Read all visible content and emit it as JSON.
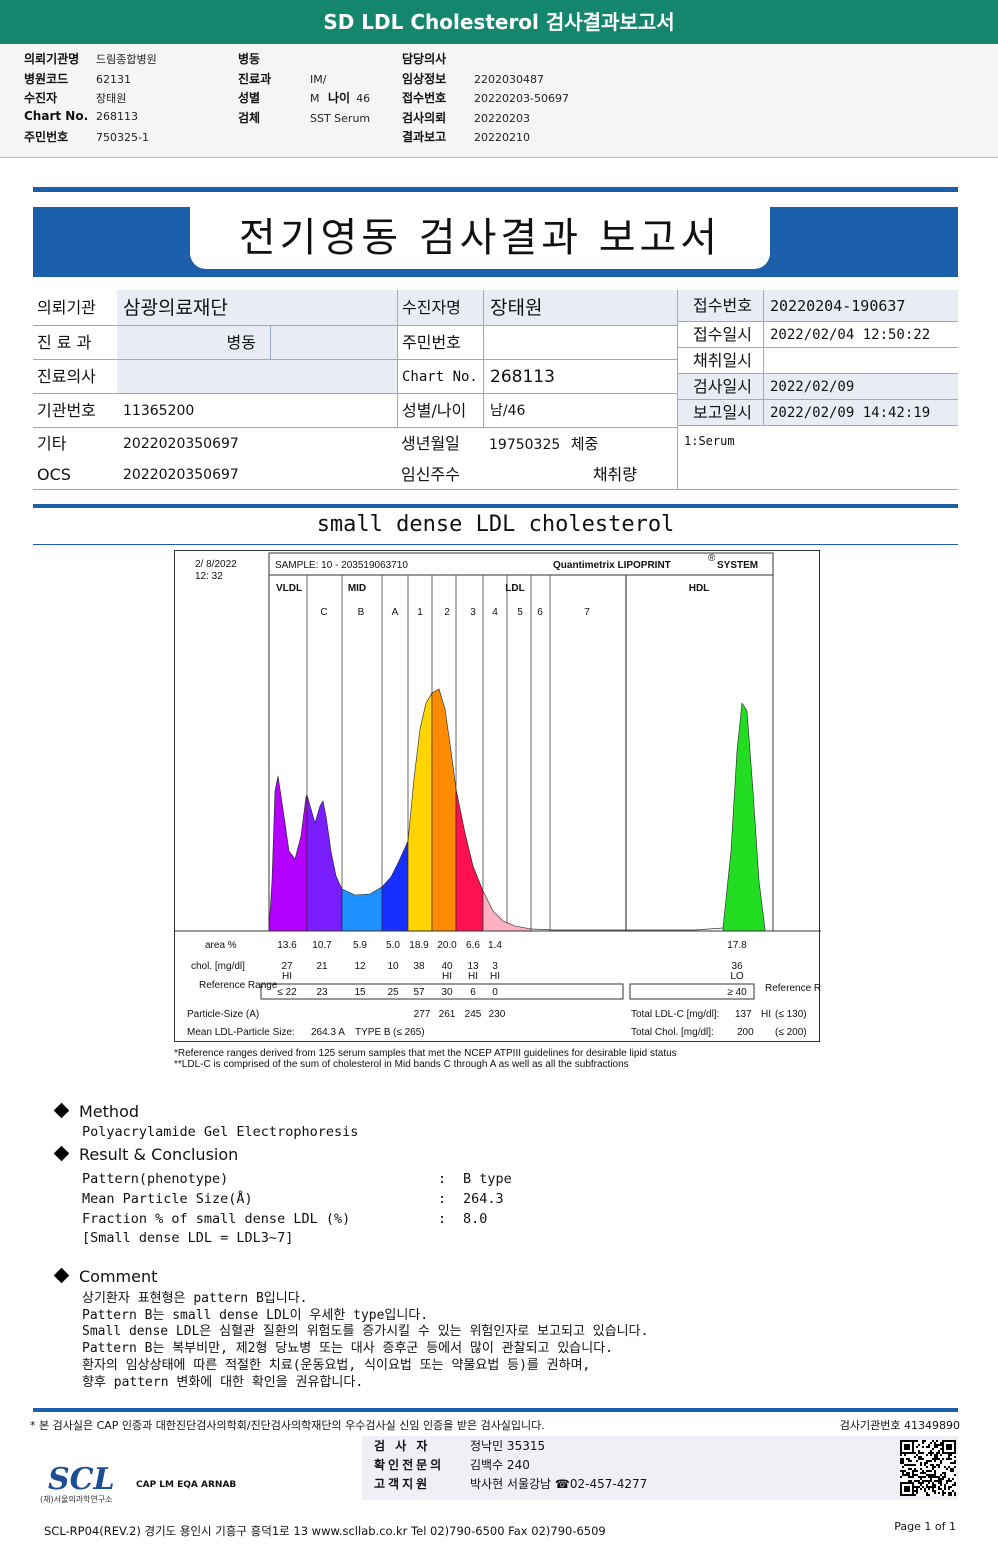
{
  "banner": {
    "title": "SD LDL Cholesterol 검사결과보고서"
  },
  "top_info": {
    "col1": [
      {
        "k": "의뢰기관명",
        "v": "드림종합병원"
      },
      {
        "k": "병원코드",
        "v": "62131"
      },
      {
        "k": "수진자",
        "v": "장태원"
      },
      {
        "k": "Chart No.",
        "v": "268113"
      },
      {
        "k": "주민번호",
        "v": "750325-1"
      }
    ],
    "col2": [
      {
        "k": "병동",
        "v": ""
      },
      {
        "k": "진료과",
        "v": "IM/"
      },
      {
        "k": "성별",
        "v": "M"
      },
      {
        "k": "검체",
        "v": "SST Serum"
      }
    ],
    "age_label": "나이",
    "age_value": "46",
    "col3": [
      {
        "k": "담당의사",
        "v": ""
      },
      {
        "k": "임상정보",
        "v": "2202030487"
      },
      {
        "k": "접수번호",
        "v": "20220203-50697"
      },
      {
        "k": "검사의뢰",
        "v": "20220203"
      },
      {
        "k": "결과보고",
        "v": "20220210"
      }
    ]
  },
  "report": {
    "title": "전기영동 검사결과 보고서",
    "fields": {
      "inst_label": "의뢰기관",
      "inst_value": "삼광의료재단",
      "dept_label": "진 료 과",
      "dept_value": "병동",
      "doctor_label": "진료의사",
      "code_label": "기관번호",
      "code_value": "11365200",
      "etc_label": "기타",
      "etc_value": "2022020350697",
      "ocs_label": "OCS",
      "ocs_value": "2022020350697",
      "patient_label": "수진자명",
      "patient_value": "장태원",
      "rrn_label": "주민번호",
      "chart_label": "Chart No.",
      "chart_value": "268113",
      "sexage_label": "성별/나이",
      "sexage_value": "남/46",
      "birth_label": "생년월일",
      "birth_value": "19750325",
      "weight_label": "체중",
      "preg_label": "임신주수",
      "volume_label": "채취량",
      "recno_label": "접수번호",
      "recno_value": "20220204-190637",
      "recdate_label": "접수일시",
      "recdate_value": "2022/02/04 12:50:22",
      "collect_label": "채취일시",
      "testdate_label": "검사일시",
      "testdate_value": "2022/02/09",
      "reportdate_label": "보고일시",
      "reportdate_value": "2022/02/09 14:42:19",
      "specimen_value": "1:Serum"
    }
  },
  "section_title": "small dense LDL cholesterol",
  "chart_data": {
    "type": "area",
    "header": {
      "date": "2/ 8/2022",
      "time": "12: 32",
      "sample": "SAMPLE:   10 - 203519063710",
      "brand": "Quantimetrix LIPOPRINT",
      "brand_mark": "®",
      "brand_tail": "SYSTEM"
    },
    "groups": [
      "VLDL",
      "MID",
      "LDL",
      "HDL"
    ],
    "bands": [
      "C",
      "B",
      "A",
      "1",
      "2",
      "3",
      "4",
      "5",
      "6",
      "7"
    ],
    "row_labels": {
      "area": "area %",
      "chol": "chol. [mg/dl]",
      "ref": "Reference Range",
      "ref_right": "Reference Range",
      "particle": "Particle-Size (A)",
      "mean": "Mean LDL-Particle Size:"
    },
    "fractions": [
      {
        "name": "VLDL",
        "area": "13.6",
        "chol": "27",
        "flag": "HI",
        "ref": "≤ 22",
        "color": "#b400ff"
      },
      {
        "name": "C",
        "area": "10.7",
        "chol": "21",
        "flag": "",
        "ref": "23",
        "color": "#7a1dff"
      },
      {
        "name": "B",
        "area": "5.9",
        "chol": "12",
        "flag": "",
        "ref": "15",
        "color": "#1e90ff"
      },
      {
        "name": "A",
        "area": "5.0",
        "chol": "10",
        "flag": "",
        "ref": "25",
        "color": "#1830ff"
      },
      {
        "name": "1",
        "area": "18.9",
        "chol": "38",
        "flag": "",
        "ref": "57",
        "color": "#ffd400"
      },
      {
        "name": "2",
        "area": "20.0",
        "chol": "40",
        "flag": "HI",
        "ref": "30",
        "color": "#ff8c00"
      },
      {
        "name": "3",
        "area": "6.6",
        "chol": "13",
        "flag": "HI",
        "ref": "6",
        "color": "#ff1050"
      },
      {
        "name": "4-7",
        "area": "1.4",
        "chol": "3",
        "flag": "HI",
        "ref": "0",
        "color": "#ffb0c0"
      },
      {
        "name": "HDL",
        "area": "17.8",
        "chol": "36",
        "flag": "LO",
        "ref": "≥ 40",
        "color": "#22dd22"
      }
    ],
    "particle_sizes": [
      "277",
      "261",
      "245",
      "230"
    ],
    "mean_ldl_size": "264.3 A",
    "mean_ldl_type": "TYPE B",
    "mean_ldl_ref": "(≤ 265)",
    "total_ldl_label": "Total LDL-C [mg/dl]:",
    "total_ldl_value": "137",
    "total_ldl_flag": "HI",
    "total_ldl_ref": "(≤ 130)",
    "total_chol_label": "Total Chol. [mg/dl]:",
    "total_chol_value": "200",
    "total_chol_ref": "(≤ 200)"
  },
  "footnotes": [
    "*Reference ranges derived from 125 serum samples that met the NCEP ATPIII guidelines for desirable lipid status",
    "**LDL-C is comprised of the sum of cholesterol in Mid bands C through A as well as all the subfractions"
  ],
  "method": {
    "title": "Method",
    "text": "Polyacrylamide Gel Electrophoresis"
  },
  "result": {
    "title": "Result & Conclusion",
    "rows": [
      {
        "k": "Pattern(phenotype)",
        "v": "B type"
      },
      {
        "k": "Mean Particle Size(Å)",
        "v": "264.3"
      },
      {
        "k": "Fraction % of small dense LDL (%)",
        "v": "8.0"
      }
    ],
    "note": "[Small dense LDL = LDL3~7]"
  },
  "comment": {
    "title": "Comment",
    "lines": [
      "상기환자 표현형은 pattern B입니다.",
      "Pattern B는 small dense LDL이 우세한 type입니다.",
      "Small dense LDL은 심혈관 질환의 위험도를 증가시킬 수 있는 위험인자로 보고되고 있습니다.",
      "Pattern B는 복부비만, 제2형 당뇨병 또는 대사 증후군 등에서 많이 관찰되고 있습니다.",
      "환자의 임상상태에 따른 적절한 치료(운동요법, 식이요법 또는 약물요법 등)를 권하며,",
      "향후 pattern 변화에 대한 확인을 권유합니다."
    ]
  },
  "footer": {
    "cert_note": "* 본 검사실은 CAP 인증과 대한진단검사의학회/진단검사의학재단의 우수검사실 신임 인증을 받은 검사실입니다.",
    "inst_code": "검사기관번호 41349890",
    "staff": [
      {
        "k": "검 사 자",
        "v": "정낙민 35315"
      },
      {
        "k": "확인전문의",
        "v": "김백수 240"
      },
      {
        "k": "고객지원",
        "v": "박사현 서울강남 ☎02-457-4277"
      }
    ],
    "logo": "SCL",
    "logo_sub": "(재)서울의과학연구소",
    "cert_logos": "CAP  LM  EQA  ARNAB",
    "address": "SCL-RP04(REV.2)  경기도 용인시 기흥구 흥덕1로 13  www.scllab.co.kr  Tel 02)790-6500  Fax 02)790-6509",
    "page": "Page 1 of 1"
  }
}
